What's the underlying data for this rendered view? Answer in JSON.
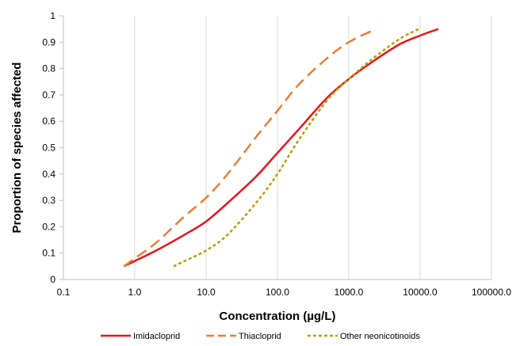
{
  "chart_data": {
    "type": "line",
    "title": "",
    "xlabel": "Concentration (µg/L)",
    "ylabel": "Proportion of species affected",
    "x_scale": "log",
    "xlim": [
      0.1,
      100000
    ],
    "ylim": [
      0,
      1
    ],
    "x_ticks": [
      0.1,
      1,
      10,
      100,
      1000,
      10000,
      100000
    ],
    "x_tick_labels": [
      "0.1",
      "1.0",
      "10.0",
      "100.0",
      "1000.0",
      "10000.0",
      "100000.0"
    ],
    "y_ticks": [
      0,
      0.1,
      0.2,
      0.3,
      0.4,
      0.5,
      0.6,
      0.7,
      0.8,
      0.9,
      1
    ],
    "y_tick_labels": [
      "0",
      "0.1",
      "0.2",
      "0.3",
      "0.4",
      "0.5",
      "0.6",
      "0.7",
      "0.8",
      "0.9",
      "1"
    ],
    "grid": "vertical",
    "legend_position": "bottom",
    "series": [
      {
        "name": "Imidacloprid",
        "color": "#e8141b",
        "style": "solid",
        "points": [
          [
            0.7,
            0.05
          ],
          [
            1,
            0.07
          ],
          [
            2,
            0.11
          ],
          [
            5,
            0.17
          ],
          [
            10,
            0.22
          ],
          [
            20,
            0.29
          ],
          [
            50,
            0.39
          ],
          [
            100,
            0.48
          ],
          [
            200,
            0.57
          ],
          [
            500,
            0.69
          ],
          [
            1000,
            0.76
          ],
          [
            2000,
            0.82
          ],
          [
            5000,
            0.89
          ],
          [
            10000,
            0.925
          ],
          [
            18000,
            0.95
          ]
        ]
      },
      {
        "name": "Thiacloprid",
        "color": "#ed7d31",
        "style": "dashed",
        "points": [
          [
            0.7,
            0.05
          ],
          [
            1,
            0.08
          ],
          [
            2,
            0.14
          ],
          [
            5,
            0.24
          ],
          [
            10,
            0.31
          ],
          [
            20,
            0.4
          ],
          [
            50,
            0.54
          ],
          [
            100,
            0.64
          ],
          [
            200,
            0.74
          ],
          [
            500,
            0.84
          ],
          [
            1000,
            0.9
          ],
          [
            2400,
            0.95
          ]
        ]
      },
      {
        "name": "Other neonicotinoids",
        "color": "#b8a000",
        "style": "dotted",
        "points": [
          [
            3.5,
            0.05
          ],
          [
            5,
            0.07
          ],
          [
            10,
            0.11
          ],
          [
            20,
            0.17
          ],
          [
            50,
            0.29
          ],
          [
            100,
            0.4
          ],
          [
            200,
            0.53
          ],
          [
            500,
            0.68
          ],
          [
            1000,
            0.76
          ],
          [
            2000,
            0.83
          ],
          [
            5000,
            0.91
          ],
          [
            9500,
            0.95
          ]
        ]
      }
    ]
  }
}
